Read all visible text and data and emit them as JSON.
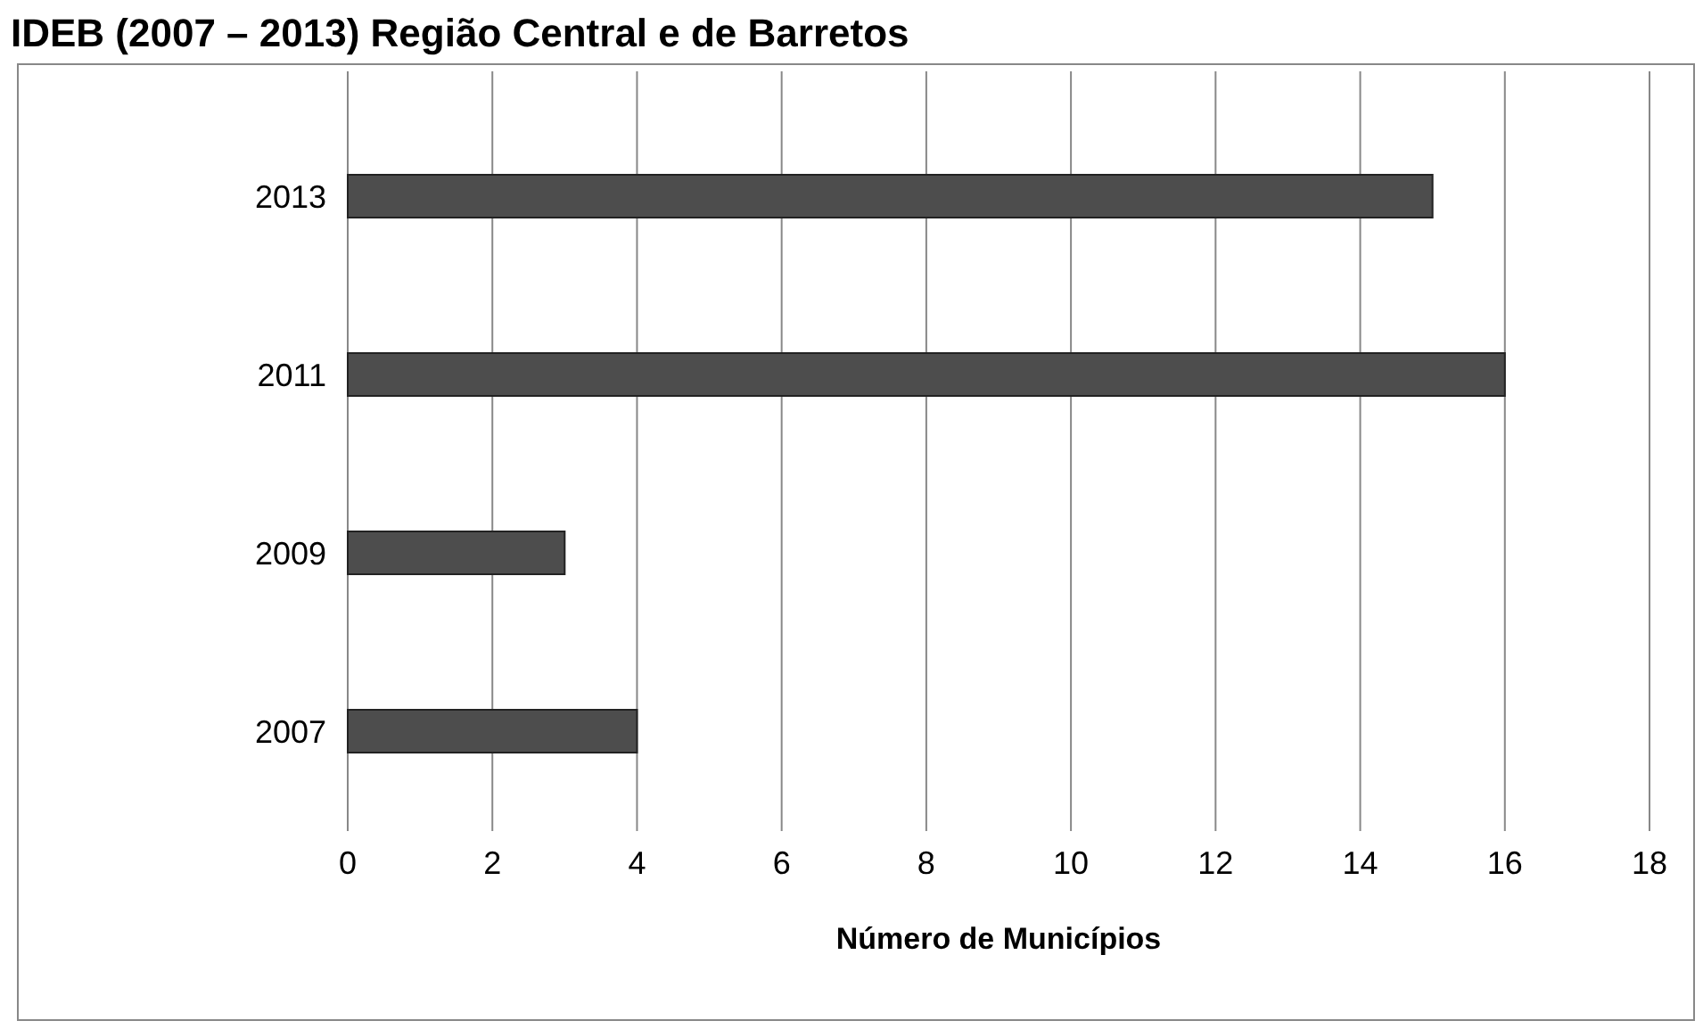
{
  "chart_data": {
    "type": "bar",
    "orientation": "horizontal",
    "title": "IDEB (2007 – 2013) Região Central e de Barretos",
    "xlabel": "Número de Municípios",
    "categories": [
      "2013",
      "2011",
      "2009",
      "2007"
    ],
    "values": [
      15,
      16,
      3,
      4
    ],
    "color": "#4d4d4d",
    "xlim": [
      0,
      18
    ],
    "xticks": [
      0,
      2,
      4,
      6,
      8,
      10,
      12,
      14,
      16,
      18
    ],
    "grid": "x"
  }
}
